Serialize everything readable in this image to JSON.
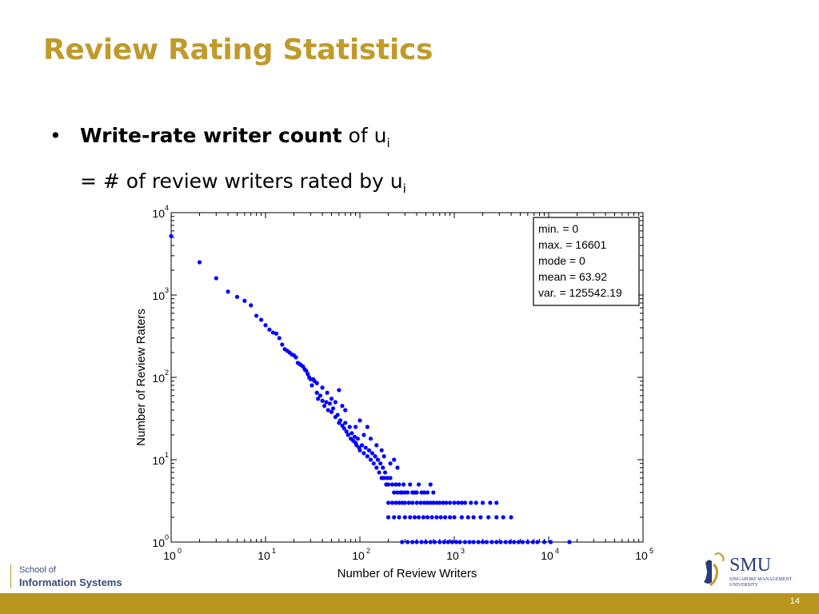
{
  "slide": {
    "title": "Review Rating Statistics",
    "bullet": {
      "bold": "Write-rate writer count",
      "rest": " of u",
      "sub1": "i",
      "line2": "= # of review writers rated by u",
      "sub2": "i"
    },
    "footer": {
      "school_line1": "School of",
      "school_line2": "Information Systems",
      "smu_name": "SMU",
      "smu_sub": "SINGAPORE MANAGEMENT UNIVERSITY",
      "page_number": "14"
    },
    "colors": {
      "title": "#c09a2b",
      "footer_bar": "#b8961e",
      "points": "#0000ff"
    }
  },
  "chart_data": {
    "type": "scatter",
    "xlabel": "Number of Review Writers",
    "ylabel": "Number of Review Raters",
    "xscale": "log",
    "yscale": "log",
    "xlim": [
      1,
      100000
    ],
    "ylim": [
      1,
      10000
    ],
    "xticks": [
      {
        "value": 1,
        "exp": "0"
      },
      {
        "value": 10,
        "exp": "1"
      },
      {
        "value": 100,
        "exp": "2"
      },
      {
        "value": 1000,
        "exp": "3"
      },
      {
        "value": 10000,
        "exp": "4"
      },
      {
        "value": 100000,
        "exp": "5"
      }
    ],
    "yticks": [
      {
        "value": 1,
        "exp": "0"
      },
      {
        "value": 10,
        "exp": "1"
      },
      {
        "value": 100,
        "exp": "2"
      },
      {
        "value": 1000,
        "exp": "3"
      },
      {
        "value": 10000,
        "exp": "4"
      }
    ],
    "tick_base": "10",
    "stats_box": {
      "lines": [
        "min. = 0",
        "max. = 16601",
        "mode = 0",
        "mean = 63.92",
        "var. = 125542.19"
      ],
      "position": "top-right"
    },
    "grid": false,
    "points": [
      [
        1,
        5200
      ],
      [
        2,
        2500
      ],
      [
        3,
        1600
      ],
      [
        4,
        1100
      ],
      [
        5,
        950
      ],
      [
        6,
        850
      ],
      [
        7,
        750
      ],
      [
        8,
        560
      ],
      [
        9,
        500
      ],
      [
        10,
        430
      ],
      [
        11,
        380
      ],
      [
        12,
        350
      ],
      [
        13,
        340
      ],
      [
        14,
        300
      ],
      [
        15,
        250
      ],
      [
        16,
        220
      ],
      [
        17,
        210
      ],
      [
        18,
        200
      ],
      [
        19,
        190
      ],
      [
        20,
        185
      ],
      [
        21,
        175
      ],
      [
        22,
        150
      ],
      [
        23,
        145
      ],
      [
        24,
        140
      ],
      [
        25,
        135
      ],
      [
        26,
        125
      ],
      [
        27,
        120
      ],
      [
        28,
        110
      ],
      [
        29,
        100
      ],
      [
        30,
        95
      ],
      [
        31,
        80
      ],
      [
        33,
        90
      ],
      [
        35,
        65
      ],
      [
        36,
        55
      ],
      [
        38,
        60
      ],
      [
        40,
        52
      ],
      [
        42,
        45
      ],
      [
        44,
        50
      ],
      [
        46,
        40
      ],
      [
        48,
        48
      ],
      [
        50,
        38
      ],
      [
        52,
        42
      ],
      [
        55,
        33
      ],
      [
        58,
        35
      ],
      [
        60,
        28
      ],
      [
        62,
        30
      ],
      [
        65,
        26
      ],
      [
        68,
        24
      ],
      [
        70,
        28
      ],
      [
        72,
        22
      ],
      [
        75,
        20
      ],
      [
        78,
        25
      ],
      [
        80,
        18
      ],
      [
        82,
        21
      ],
      [
        85,
        17
      ],
      [
        88,
        19
      ],
      [
        90,
        16
      ],
      [
        92,
        15
      ],
      [
        95,
        18
      ],
      [
        98,
        14
      ],
      [
        100,
        13
      ],
      [
        105,
        15
      ],
      [
        110,
        12
      ],
      [
        115,
        14
      ],
      [
        120,
        11
      ],
      [
        125,
        13
      ],
      [
        130,
        10
      ],
      [
        135,
        12
      ],
      [
        140,
        9
      ],
      [
        145,
        11
      ],
      [
        150,
        8
      ],
      [
        155,
        10
      ],
      [
        160,
        7
      ],
      [
        165,
        9
      ],
      [
        170,
        6
      ],
      [
        175,
        8
      ],
      [
        180,
        6
      ],
      [
        185,
        7
      ],
      [
        190,
        5
      ],
      [
        195,
        6
      ],
      [
        200,
        5
      ],
      [
        210,
        6
      ],
      [
        220,
        5
      ],
      [
        230,
        4
      ],
      [
        240,
        5
      ],
      [
        250,
        4
      ],
      [
        260,
        5
      ],
      [
        270,
        4
      ],
      [
        280,
        4
      ],
      [
        290,
        5
      ],
      [
        300,
        4
      ],
      [
        320,
        4
      ],
      [
        340,
        5
      ],
      [
        360,
        4
      ],
      [
        380,
        4
      ],
      [
        400,
        4
      ],
      [
        420,
        5
      ],
      [
        450,
        4
      ],
      [
        480,
        4
      ],
      [
        520,
        4
      ],
      [
        560,
        5
      ],
      [
        600,
        4
      ],
      [
        200,
        3
      ],
      [
        220,
        3
      ],
      [
        240,
        3
      ],
      [
        260,
        3
      ],
      [
        280,
        3
      ],
      [
        300,
        3
      ],
      [
        330,
        3
      ],
      [
        360,
        3
      ],
      [
        400,
        3
      ],
      [
        440,
        3
      ],
      [
        480,
        3
      ],
      [
        520,
        3
      ],
      [
        560,
        3
      ],
      [
        600,
        3
      ],
      [
        650,
        3
      ],
      [
        700,
        3
      ],
      [
        760,
        3
      ],
      [
        820,
        3
      ],
      [
        900,
        3
      ],
      [
        1000,
        3
      ],
      [
        1100,
        3
      ],
      [
        1200,
        3
      ],
      [
        1300,
        3
      ],
      [
        1500,
        3
      ],
      [
        1700,
        3
      ],
      [
        2000,
        3
      ],
      [
        2400,
        3
      ],
      [
        2800,
        3
      ],
      [
        200,
        2
      ],
      [
        230,
        2
      ],
      [
        260,
        2
      ],
      [
        300,
        2
      ],
      [
        340,
        2
      ],
      [
        380,
        2
      ],
      [
        420,
        2
      ],
      [
        470,
        2
      ],
      [
        520,
        2
      ],
      [
        580,
        2
      ],
      [
        650,
        2
      ],
      [
        720,
        2
      ],
      [
        800,
        2
      ],
      [
        900,
        2
      ],
      [
        1000,
        2
      ],
      [
        1200,
        2
      ],
      [
        1400,
        2
      ],
      [
        1600,
        2
      ],
      [
        1900,
        2
      ],
      [
        2300,
        2
      ],
      [
        2800,
        2
      ],
      [
        3300,
        2
      ],
      [
        4000,
        2
      ],
      [
        280,
        1
      ],
      [
        320,
        1
      ],
      [
        360,
        1
      ],
      [
        400,
        1
      ],
      [
        450,
        1
      ],
      [
        500,
        1
      ],
      [
        560,
        1
      ],
      [
        620,
        1
      ],
      [
        700,
        1
      ],
      [
        780,
        1
      ],
      [
        860,
        1
      ],
      [
        950,
        1
      ],
      [
        1050,
        1
      ],
      [
        1150,
        1
      ],
      [
        1300,
        1
      ],
      [
        1450,
        1
      ],
      [
        1600,
        1
      ],
      [
        1800,
        1
      ],
      [
        2000,
        1
      ],
      [
        2200,
        1
      ],
      [
        2500,
        1
      ],
      [
        2800,
        1
      ],
      [
        3100,
        1
      ],
      [
        3500,
        1
      ],
      [
        3900,
        1
      ],
      [
        4300,
        1
      ],
      [
        4800,
        1
      ],
      [
        5300,
        1
      ],
      [
        6000,
        1
      ],
      [
        6800,
        1
      ],
      [
        7600,
        1
      ],
      [
        9000,
        1
      ],
      [
        10500,
        1
      ],
      [
        16600,
        1
      ],
      [
        60,
        70
      ],
      [
        45,
        65
      ],
      [
        40,
        75
      ],
      [
        35,
        85
      ],
      [
        32,
        95
      ],
      [
        50,
        55
      ],
      [
        55,
        50
      ],
      [
        70,
        40
      ],
      [
        65,
        45
      ],
      [
        90,
        25
      ],
      [
        110,
        20
      ],
      [
        130,
        18
      ],
      [
        150,
        15
      ],
      [
        170,
        13
      ],
      [
        100,
        30
      ],
      [
        120,
        25
      ],
      [
        180,
        11
      ],
      [
        210,
        9
      ],
      [
        250,
        8
      ],
      [
        230,
        10
      ]
    ]
  }
}
